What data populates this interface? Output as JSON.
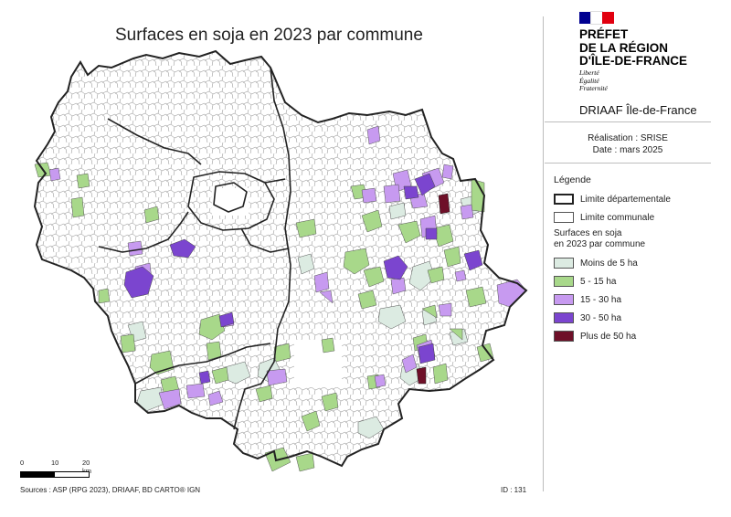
{
  "title": "Surfaces en soja en 2023 par commune",
  "institution": {
    "line1": "PRÉFET",
    "line2": "DE LA RÉGION",
    "line3": "D'ÎLE-DE-FRANCE",
    "motto1": "Liberté",
    "motto2": "Égalité",
    "motto3": "Fraternité",
    "service": "DRIAAF Île-de-France"
  },
  "realisation": "Réalisation : SRISE",
  "date": "Date : mars 2025",
  "legend": {
    "title": "Légende",
    "limit_dept": "Limite départementale",
    "limit_commune": "Limite communale",
    "subtitle_1": "Surfaces en soja",
    "subtitle_2": "en 2023 par commune",
    "classes": [
      {
        "label": "Moins de 5 ha",
        "color": "#dcebe2"
      },
      {
        "label": "5 - 15 ha",
        "color": "#a8d88a"
      },
      {
        "label": "15 - 30 ha",
        "color": "#c79af0"
      },
      {
        "label": "30 - 50 ha",
        "color": "#7b45cf"
      },
      {
        "label": "Plus de 50 ha",
        "color": "#6e0f28"
      }
    ]
  },
  "scale": {
    "ticks": [
      "0",
      "10",
      "20 km"
    ]
  },
  "sources": "Sources : ASP (RPG 2023), DRIAAF, BD CARTO® IGN",
  "id_label": "ID : 131",
  "flag_colors": [
    "#000091",
    "#ffffff",
    "#e1000f"
  ]
}
